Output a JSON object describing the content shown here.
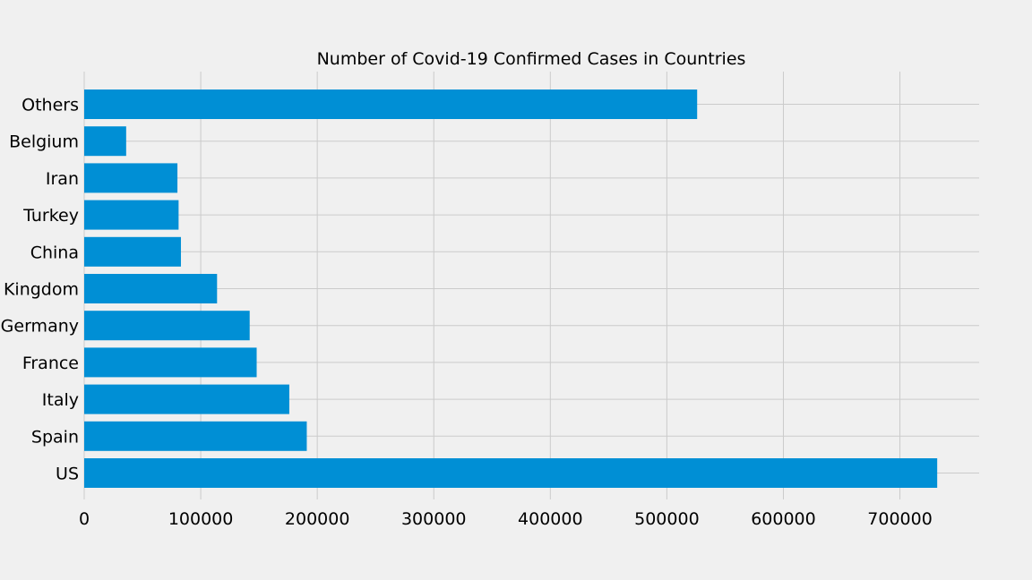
{
  "chart_data": {
    "type": "bar",
    "orientation": "horizontal",
    "title": "Number of Covid-19 Confirmed Cases in Countries",
    "xlabel": "",
    "ylabel": "",
    "categories": [
      "US",
      "Spain",
      "Italy",
      "France",
      "Germany",
      "United Kingdom",
      "China",
      "Turkey",
      "Iran",
      "Belgium",
      "Others"
    ],
    "values": [
      732000,
      191000,
      176000,
      148000,
      142000,
      114000,
      83000,
      81000,
      80000,
      36000,
      526000
    ],
    "xlim": [
      0,
      768000
    ],
    "xticks": [
      0,
      100000,
      200000,
      300000,
      400000,
      500000,
      600000,
      700000
    ],
    "xtick_labels": [
      "0",
      "100000",
      "200000",
      "300000",
      "400000",
      "500000",
      "600000",
      "700000"
    ],
    "grid": true,
    "colors": {
      "bar": "#008fd5",
      "background": "#f0f0f0",
      "grid": "#cbcbcb"
    }
  }
}
